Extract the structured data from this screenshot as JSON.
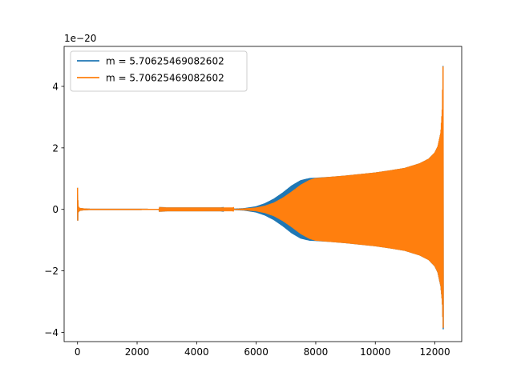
{
  "chart_data": {
    "type": "line",
    "title": "",
    "xlabel": "",
    "ylabel": "",
    "y_offset_text": "1e−20",
    "xlim": [
      -450,
      12900
    ],
    "ylim": [
      -4.3,
      5.3
    ],
    "x_ticks": [
      0,
      2000,
      4000,
      6000,
      8000,
      10000,
      12000
    ],
    "x_tick_labels": [
      "0",
      "2000",
      "4000",
      "6000",
      "8000",
      "10000",
      "12000"
    ],
    "y_ticks": [
      -4,
      -2,
      0,
      2,
      4
    ],
    "y_tick_labels": [
      "−4",
      "−2",
      "0",
      "2",
      "4"
    ],
    "grid": false,
    "legend_position": "upper-left",
    "series": [
      {
        "name": "m = 5.70625469082602",
        "color": "#1f77b4",
        "envelope_x": [
          0,
          20,
          60,
          120,
          200,
          400,
          1000,
          2000,
          3000,
          4000,
          4800,
          5200,
          5600,
          6000,
          6300,
          6600,
          6900,
          7200,
          7500,
          7800,
          8000,
          8500,
          9000,
          9500,
          10000,
          10500,
          11000,
          11500,
          11800,
          12000,
          12100,
          12200,
          12250,
          12270,
          12280
        ],
        "envelope_upper": [
          0.7,
          0.1,
          0.05,
          0.04,
          0.03,
          0.02,
          0.02,
          0.02,
          0.01,
          0.01,
          0.01,
          0.02,
          0.04,
          0.1,
          0.2,
          0.35,
          0.55,
          0.78,
          0.95,
          1.02,
          1.03,
          1.06,
          1.1,
          1.15,
          1.2,
          1.27,
          1.35,
          1.5,
          1.65,
          1.85,
          2.05,
          2.5,
          3.3,
          4.5,
          5.0
        ],
        "envelope_lower": [
          -0.5,
          -0.1,
          -0.05,
          -0.04,
          -0.03,
          -0.02,
          -0.02,
          -0.02,
          -0.01,
          -0.01,
          -0.01,
          -0.02,
          -0.04,
          -0.1,
          -0.2,
          -0.35,
          -0.55,
          -0.78,
          -0.95,
          -1.02,
          -1.03,
          -1.06,
          -1.1,
          -1.15,
          -1.2,
          -1.27,
          -1.35,
          -1.5,
          -1.65,
          -1.85,
          -2.05,
          -2.5,
          -3.0,
          -3.6,
          -3.9
        ]
      },
      {
        "name": "m = 5.70625469082602",
        "color": "#ff7f0e",
        "envelope_x": [
          0,
          20,
          60,
          120,
          200,
          400,
          1000,
          2000,
          3000,
          4000,
          4800,
          5200,
          5600,
          6000,
          6300,
          6600,
          6900,
          7200,
          7500,
          7800,
          8000,
          8500,
          9000,
          9500,
          10000,
          10500,
          11000,
          11500,
          11800,
          12000,
          12100,
          12200,
          12250,
          12270,
          12280
        ],
        "envelope_upper": [
          0.7,
          0.1,
          0.05,
          0.04,
          0.03,
          0.02,
          0.02,
          0.02,
          0.01,
          0.01,
          0.01,
          0.01,
          0.03,
          0.06,
          0.12,
          0.22,
          0.38,
          0.58,
          0.8,
          0.96,
          1.02,
          1.06,
          1.1,
          1.15,
          1.2,
          1.27,
          1.35,
          1.5,
          1.65,
          1.85,
          2.05,
          2.5,
          3.3,
          4.5,
          4.95
        ],
        "envelope_lower": [
          -0.5,
          -0.1,
          -0.05,
          -0.04,
          -0.03,
          -0.02,
          -0.02,
          -0.02,
          -0.01,
          -0.01,
          -0.01,
          -0.01,
          -0.03,
          -0.06,
          -0.12,
          -0.22,
          -0.38,
          -0.58,
          -0.8,
          -0.96,
          -1.02,
          -1.06,
          -1.1,
          -1.15,
          -1.2,
          -1.27,
          -1.35,
          -1.5,
          -1.65,
          -1.85,
          -2.05,
          -2.5,
          -3.0,
          -3.6,
          -3.85
        ]
      }
    ]
  }
}
